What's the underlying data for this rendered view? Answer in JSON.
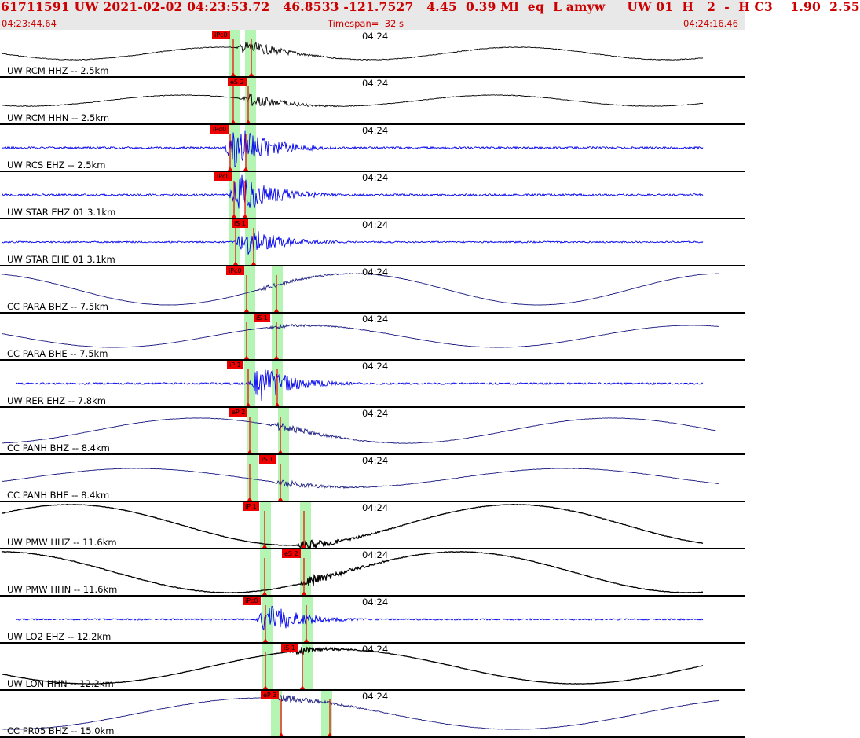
{
  "header": {
    "title": "61711591 UW 2021-02-02 04:23:53.72   46.8533 -121.7527   4.45  0.39 Ml  eq  L amyw     UW 01  H   2  -  H C3    1.90  2.55",
    "start_time": "04:23:44.64",
    "timespan": "Timespan=  32 s",
    "end_time": "04:24:16.46"
  },
  "colors": {
    "pick": "#ee0000",
    "window": "#b4f5b4",
    "wave_black": "#000000",
    "wave_blue": "#0000ee",
    "wave_navy": "#1a1a80"
  },
  "channels": [
    {
      "label": "UW RCM HHZ -- 2.5km",
      "time": "04:24",
      "pick": "iPc0",
      "color": "black"
    },
    {
      "label": "UW RCM HHN -- 2.5km",
      "time": "04:24",
      "pick": "eS 2",
      "color": "black"
    },
    {
      "label": "UW RCS EHZ -- 2.5km",
      "time": "04:24",
      "pick": "iPd0",
      "color": "blue"
    },
    {
      "label": "UW STAR EHZ 01 3.1km",
      "time": "04:24",
      "pick": "iPc0",
      "color": "blue"
    },
    {
      "label": "UW STAR EHE 01 3.1km",
      "time": "04:24",
      "pick": "iS 1",
      "color": "blue"
    },
    {
      "label": "CC PARA BHZ -- 7.5km",
      "time": "04:24",
      "pick": "iPc0",
      "color": "navy"
    },
    {
      "label": "CC PARA BHE -- 7.5km",
      "time": "04:24",
      "pick": "iS 1",
      "color": "navy"
    },
    {
      "label": "UW RER EHZ -- 7.8km",
      "time": "04:24",
      "pick": "iP 1",
      "color": "blue"
    },
    {
      "label": "CC PANH BHZ -- 8.4km",
      "time": "04:24",
      "pick": "eP 2",
      "color": "navy"
    },
    {
      "label": "CC PANH BHE -- 8.4km",
      "time": "04:24",
      "pick": "iS 1",
      "color": "navy"
    },
    {
      "label": "UW PMW HHZ -- 11.6km",
      "time": "04:24",
      "pick": "iP 1",
      "color": "black"
    },
    {
      "label": "UW PMW HHN -- 11.6km",
      "time": "04:24",
      "pick": "eS 2",
      "color": "black"
    },
    {
      "label": "UW LO2 EHZ -- 12.2km",
      "time": "04:24",
      "pick": "iPc0",
      "color": "blue"
    },
    {
      "label": "UW LON HHN -- 12.2km",
      "time": "04:24",
      "pick": "iS 1",
      "color": "black"
    },
    {
      "label": "CC PR05 BHZ -- 15.0km",
      "time": "04:24",
      "pick": "eP 3",
      "color": "navy"
    }
  ]
}
